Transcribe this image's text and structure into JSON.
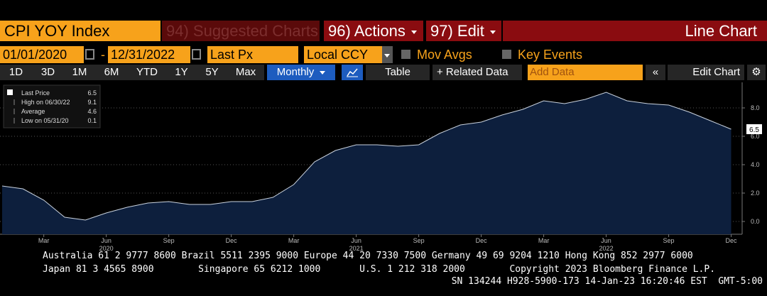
{
  "header": {
    "ticker": "CPI YOY Index",
    "suggested": "94) Suggested Charts",
    "actions": "96) Actions",
    "edit": "97) Edit",
    "view": "Line Chart"
  },
  "toolbar": {
    "start_date": "01/01/2020",
    "separator": "-",
    "end_date": "12/31/2022",
    "field": "Last Px",
    "currency": "Local CCY",
    "mov_avgs": "Mov Avgs",
    "key_events": "Key Events"
  },
  "ranges": [
    "1D",
    "3D",
    "1M",
    "6M",
    "YTD",
    "1Y",
    "5Y",
    "Max"
  ],
  "buttons": {
    "frequency": "Monthly",
    "table": "Table",
    "related": "+ Related Data",
    "add_data": "Add Data",
    "edit_chart": "Edit Chart"
  },
  "chart_data": {
    "type": "area",
    "categories": [
      null,
      null,
      "Mar",
      null,
      null,
      "Jun",
      null,
      null,
      "Sep",
      null,
      null,
      "Dec",
      null,
      null,
      "Mar",
      null,
      null,
      "Jun",
      null,
      null,
      "Sep",
      null,
      null,
      "Dec",
      null,
      null,
      "Mar",
      null,
      null,
      "Jun",
      null,
      null,
      "Sep",
      null,
      null,
      "Dec"
    ],
    "years": [
      "2020",
      "2021",
      "2022"
    ],
    "series": [
      {
        "name": "Last Price",
        "color": "#c9d2de",
        "fill": "#0d1f3d",
        "values": [
          2.5,
          2.3,
          1.5,
          0.3,
          0.1,
          0.6,
          1.0,
          1.3,
          1.4,
          1.2,
          1.2,
          1.4,
          1.4,
          1.7,
          2.6,
          4.2,
          5.0,
          5.4,
          5.4,
          5.3,
          5.4,
          6.2,
          6.8,
          7.0,
          7.5,
          7.9,
          8.5,
          8.3,
          8.6,
          9.1,
          8.5,
          8.3,
          8.2,
          7.7,
          7.1,
          6.5
        ]
      }
    ],
    "legend_stats": [
      {
        "label": "High on 06/30/22",
        "value": 9.1
      },
      {
        "label": "Average",
        "value": 4.6
      },
      {
        "label": "Low on 05/31/20",
        "value": 0.1
      }
    ],
    "ylim": [
      -0.9,
      9.8
    ],
    "yticks": [
      {
        "value": 0,
        "label": "0.0"
      },
      {
        "value": 2,
        "label": "2.0"
      },
      {
        "value": 4,
        "label": "4.0"
      },
      {
        "value": 6,
        "label": "6.0"
      },
      {
        "value": 8,
        "label": "8.0"
      }
    ],
    "grid": true
  },
  "footer": [
    "Australia 61 2 9777 8600 Brazil 5511 2395 9000 Europe 44 20 7330 7500 Germany 49 69 9204 1210 Hong Kong 852 2977 6000",
    "Japan 81 3 4565 8900        Singapore 65 6212 1000       U.S. 1 212 318 2000        Copyright 2023 Bloomberg Finance L.P.",
    "SN 134244 H928-5900-173 14-Jan-23 16:20:46 EST  GMT-5:00"
  ]
}
